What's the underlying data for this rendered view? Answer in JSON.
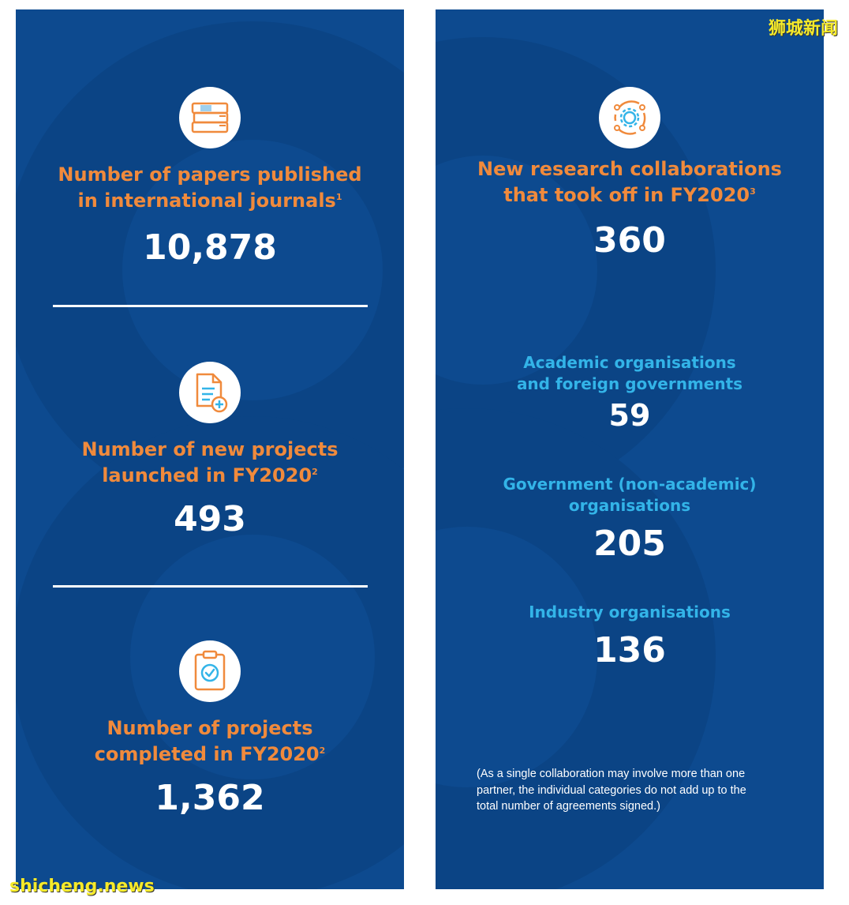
{
  "left": {
    "papers": {
      "label_line1": "Number of papers published",
      "label_line2": "in international journals",
      "footnote": "1",
      "value": "10,878",
      "icon": "books-icon"
    },
    "new_projects": {
      "label_line1": "Number of new projects",
      "label_line2": "launched in FY2020",
      "footnote": "2",
      "value": "493",
      "icon": "document-add-icon"
    },
    "completed": {
      "label_line1": "Number of projects",
      "label_line2": "completed in FY2020",
      "footnote": "2",
      "value": "1,362",
      "icon": "clipboard-check-icon"
    }
  },
  "right": {
    "collaborations": {
      "label_line1": "New research collaborations",
      "label_line2": "that took off in FY2020",
      "footnote": "3",
      "value": "360",
      "icon": "cycle-gear-icon"
    },
    "academic": {
      "label_line1": "Academic organisations",
      "label_line2": "and foreign governments",
      "value": "59"
    },
    "government": {
      "label_line1": "Government (non-academic)",
      "label_line2": "organisations",
      "value": "205"
    },
    "industry": {
      "label_line1": "Industry organisations",
      "value": "136"
    },
    "note_line1": "(As a single collaboration may involve more than one",
    "note_line2": "partner, the individual categories do not add up to the",
    "note_line3": "total number of agreements signed.)"
  },
  "watermarks": {
    "top_right": "狮城新闻",
    "bottom_left": "shicheng.news"
  },
  "colors": {
    "panel_bg": "#0d4a8f",
    "accent_orange": "#f08a3c",
    "accent_cyan": "#33b4e8",
    "value_white": "#ffffff"
  }
}
